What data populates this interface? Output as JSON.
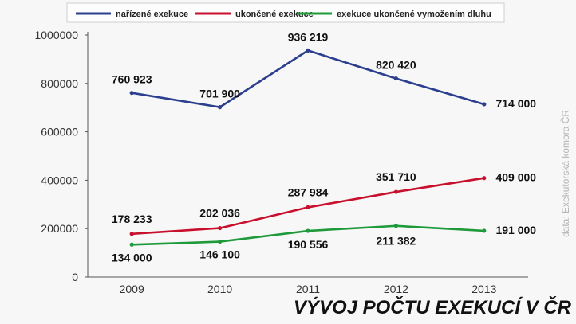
{
  "chart_data": {
    "type": "line",
    "title": "VÝVOJ POČTU EXEKUCÍ V ČR",
    "source": "data: Exekutorská komora ČR",
    "categories": [
      "2009",
      "2010",
      "2011",
      "2012",
      "2013"
    ],
    "ylim": [
      0,
      1000000
    ],
    "yticks": [
      "0",
      "200000",
      "400000",
      "600000",
      "800000",
      "1000000"
    ],
    "grid": false,
    "legend": "top",
    "series": [
      {
        "name": "nařízené exekuce",
        "color": "#2b3f8e",
        "values": [
          760923,
          701900,
          936219,
          820420,
          714000
        ],
        "labels": [
          "760 923",
          "701 900",
          "936 219",
          "820 420",
          "714 000"
        ]
      },
      {
        "name": "ukončené exekuce",
        "color": "#c8102e",
        "values": [
          178233,
          202036,
          287984,
          351710,
          409000
        ],
        "labels": [
          "178 233",
          "202 036",
          "287 984",
          "351 710",
          "409 000"
        ]
      },
      {
        "name": "exekuce ukončené vymožením dluhu",
        "color": "#1f9a3a",
        "values": [
          134000,
          146100,
          190556,
          211382,
          191000
        ],
        "labels": [
          "134 000",
          "146 100",
          "190 556",
          "211 382",
          "191 000"
        ]
      }
    ]
  }
}
